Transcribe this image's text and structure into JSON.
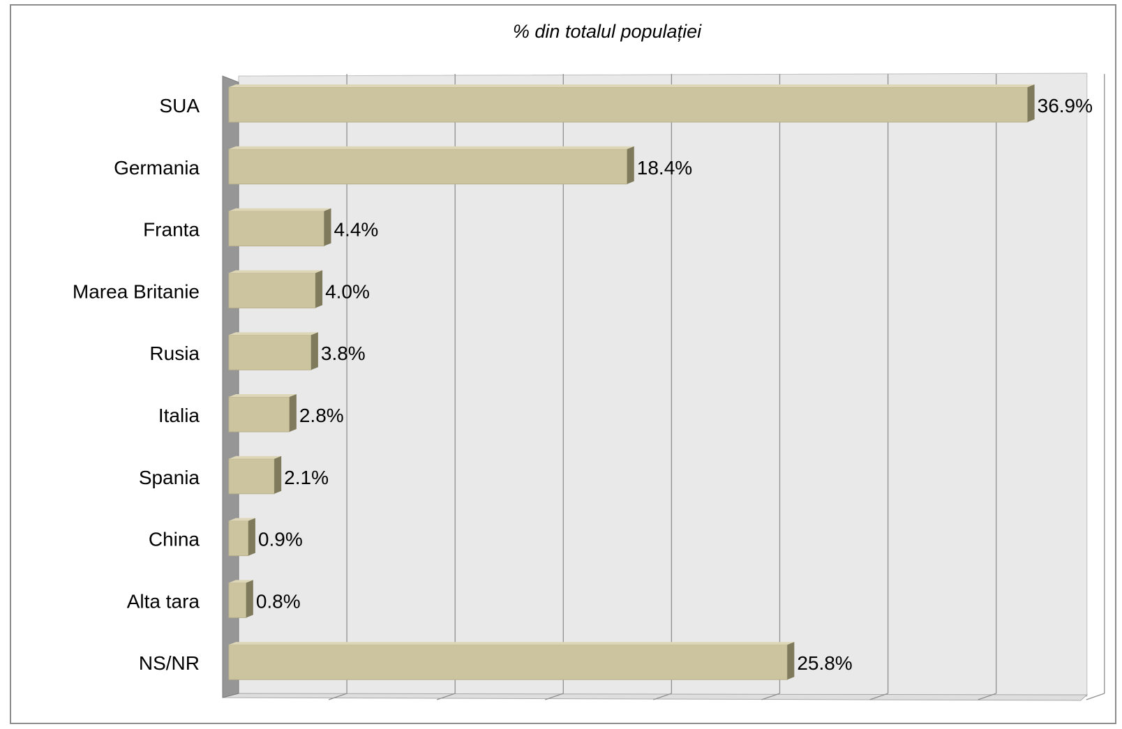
{
  "chart_data": {
    "type": "bar",
    "orientation": "horizontal",
    "title": "% din totalul populației",
    "categories": [
      "SUA",
      "Germania",
      "Franta",
      "Marea Britanie",
      "Rusia",
      "Italia",
      "Spania",
      "China",
      "Alta tara",
      "NS/NR"
    ],
    "values": [
      36.9,
      18.4,
      4.4,
      4.0,
      3.8,
      2.8,
      2.1,
      0.9,
      0.8,
      25.8
    ],
    "value_labels": [
      "36.9%",
      "18.4%",
      "4.4%",
      "4.0%",
      "3.8%",
      "2.8%",
      "2.1%",
      "0.9%",
      "0.8%",
      "25.8%"
    ],
    "xlim": [
      0,
      40
    ],
    "grid": true,
    "legend": "none",
    "bar_color": "#cbc49f",
    "bar_side_color": "#7f7a5c",
    "wall_color": "#e9e9e9",
    "side_wall_color": "#969696"
  }
}
